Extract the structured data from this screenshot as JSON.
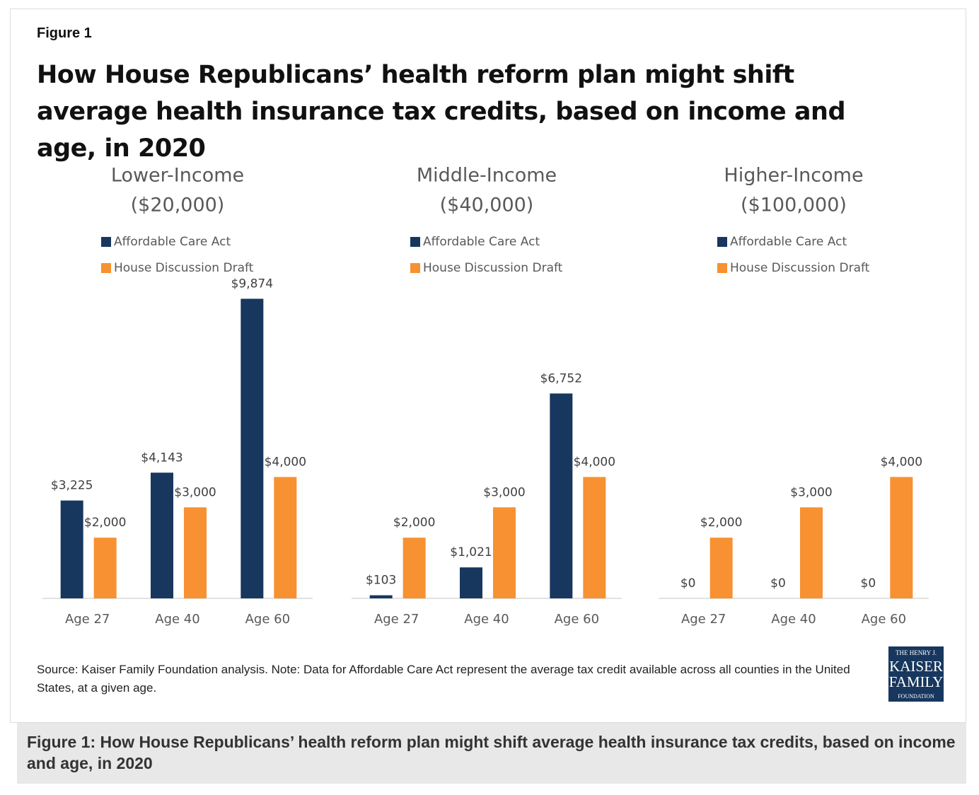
{
  "figure_label": "Figure 1",
  "title": "How House Republicans’ health reform plan might shift average health insurance tax credits, based on income and age, in 2020",
  "chart_data": [
    {
      "type": "bar",
      "title": "Lower-Income",
      "subtitle": "($20,000)",
      "categories": [
        "Age 27",
        "Age 40",
        "Age 60"
      ],
      "ylim": [
        0,
        10000
      ],
      "series": [
        {
          "name": "Affordable Care Act",
          "color": "#17375e",
          "values": [
            3225,
            4143,
            9874
          ],
          "value_labels": [
            "$3,225",
            "$4,143",
            "$9,874"
          ]
        },
        {
          "name": "House Discussion Draft",
          "color": "#f79131",
          "values": [
            2000,
            3000,
            4000
          ],
          "value_labels": [
            "$2,000",
            "$3,000",
            "$4,000"
          ]
        }
      ]
    },
    {
      "type": "bar",
      "title": "Middle-Income",
      "subtitle": "($40,000)",
      "categories": [
        "Age 27",
        "Age 40",
        "Age 60"
      ],
      "ylim": [
        0,
        10000
      ],
      "series": [
        {
          "name": "Affordable Care Act",
          "color": "#17375e",
          "values": [
            103,
            1021,
            6752
          ],
          "value_labels": [
            "$103",
            "$1,021",
            "$6,752"
          ]
        },
        {
          "name": "House Discussion Draft",
          "color": "#f79131",
          "values": [
            2000,
            3000,
            4000
          ],
          "value_labels": [
            "$2,000",
            "$3,000",
            "$4,000"
          ]
        }
      ]
    },
    {
      "type": "bar",
      "title": "Higher-Income",
      "subtitle": "($100,000)",
      "categories": [
        "Age 27",
        "Age 40",
        "Age 60"
      ],
      "ylim": [
        0,
        10000
      ],
      "series": [
        {
          "name": "Affordable Care Act",
          "color": "#17375e",
          "values": [
            0,
            0,
            0
          ],
          "value_labels": [
            "$0",
            "$0",
            "$0"
          ]
        },
        {
          "name": "House Discussion Draft",
          "color": "#f79131",
          "values": [
            2000,
            3000,
            4000
          ],
          "value_labels": [
            "$2,000",
            "$3,000",
            "$4,000"
          ]
        }
      ]
    }
  ],
  "source": "Source: Kaiser Family Foundation  analysis. Note: Data for Affordable Care Act represent the average tax credit available across all counties in the United States, at a given age.",
  "logo": [
    "THE HENRY J.",
    "KAISER",
    "FAMILY",
    "FOUNDATION"
  ],
  "caption": "Figure 1: How House Republicans’ health reform plan might shift average health insurance tax credits, based on income and age, in 2020"
}
